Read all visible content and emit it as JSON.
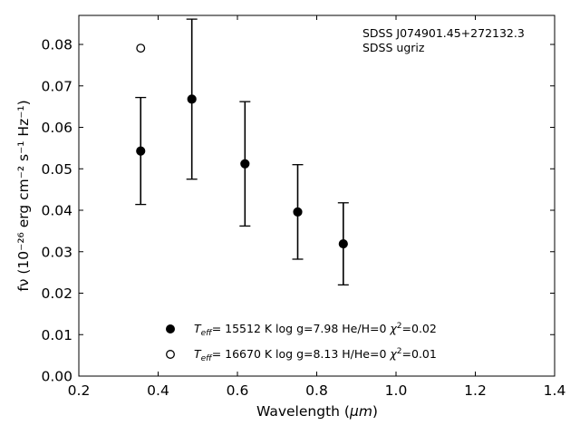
{
  "chart_data": {
    "type": "scatter",
    "title": "",
    "xlabel_main": "Wavelength (",
    "xlabel_unit": "μm",
    "xlabel_close": ")",
    "ylabel": "fν (10⁻²⁶ erg cm⁻² s⁻¹ Hz⁻¹)",
    "xlim": [
      0.2,
      1.4
    ],
    "ylim": [
      0.0,
      0.087
    ],
    "xticks": [
      "0.2",
      "0.4",
      "0.6",
      "0.8",
      "1.0",
      "1.2",
      "1.4"
    ],
    "yticks": [
      "0.00",
      "0.01",
      "0.02",
      "0.03",
      "0.04",
      "0.05",
      "0.06",
      "0.07",
      "0.08"
    ],
    "grid": false,
    "annotations": [
      "SDSS J074901.45+272132.3",
      "SDSS ugriz"
    ],
    "observed": {
      "x": [
        0.3551,
        0.4686,
        0.6166,
        0.748,
        0.8932
      ],
      "y": [
        0.0543,
        0.0668,
        0.0512,
        0.0396,
        0.0319
      ],
      "yerr": [
        0.0129,
        0.0193,
        0.015,
        0.0114,
        0.0099
      ],
      "x_display": [
        0.356,
        0.485,
        0.619,
        0.752,
        0.867
      ]
    },
    "series": [
      {
        "marker": "filled",
        "label_teff": "= 15512 K  log g=7.98  He/H=0  ",
        "label_chi": "=0.02",
        "x": [
          0.356
        ],
        "y": [
          0.0543
        ]
      },
      {
        "marker": "open",
        "label_teff": "= 16670 K  log g=8.13  H/He=0  ",
        "label_chi": "=0.01",
        "x": [
          0.356
        ],
        "y": [
          0.0791
        ]
      }
    ],
    "legend_placement": "bottom-center"
  }
}
